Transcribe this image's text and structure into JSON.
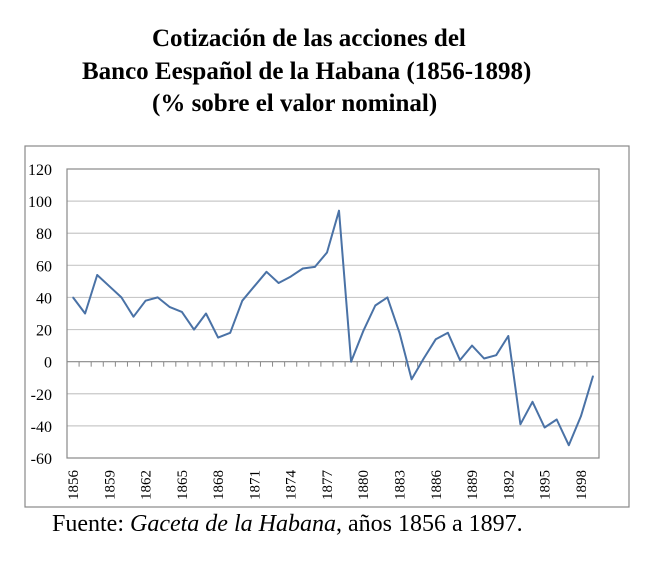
{
  "title_lines": [
    "Cotización de las acciones del",
    "Banco Eespañol de la Habana (1856-1898)",
    "(% sobre el valor nominal)"
  ],
  "footer": {
    "prefix": "Fuente: ",
    "source": "Gaceta de la Habana",
    "suffix": ", años 1856 a 1897."
  },
  "chart_data": {
    "type": "line",
    "title": "Cotización de las acciones del Banco Eespañol de la Habana (1856-1898) (% sobre el valor nominal)",
    "xlabel": "",
    "ylabel": "",
    "ylim": [
      -60,
      120
    ],
    "yticks": [
      120,
      100,
      80,
      60,
      40,
      20,
      0,
      -20,
      -40,
      -60
    ],
    "xtick_labels": [
      "1856",
      "1859",
      "1862",
      "1865",
      "1868",
      "1871",
      "1874",
      "1877",
      "1880",
      "1883",
      "1886",
      "1889",
      "1892",
      "1895",
      "1898"
    ],
    "grid": true,
    "color": "#4a72a6",
    "x": [
      1856,
      1857,
      1858,
      1859,
      1860,
      1861,
      1862,
      1863,
      1864,
      1865,
      1866,
      1867,
      1868,
      1869,
      1870,
      1871,
      1872,
      1873,
      1874,
      1875,
      1876,
      1877,
      1878,
      1879,
      1880,
      1881,
      1882,
      1883,
      1884,
      1885,
      1886,
      1887,
      1888,
      1889,
      1890,
      1891,
      1892,
      1893,
      1894,
      1895,
      1896,
      1897,
      1898,
      1899
    ],
    "values": [
      40,
      30,
      54,
      47,
      40,
      28,
      38,
      40,
      34,
      31,
      20,
      30,
      15,
      18,
      38,
      47,
      56,
      49,
      53,
      58,
      59,
      68,
      94,
      0,
      19,
      35,
      40,
      18,
      -11,
      2,
      14,
      18,
      1,
      10,
      2,
      4,
      16,
      -39,
      -25,
      -41,
      -36,
      -52,
      -34,
      -9
    ]
  }
}
